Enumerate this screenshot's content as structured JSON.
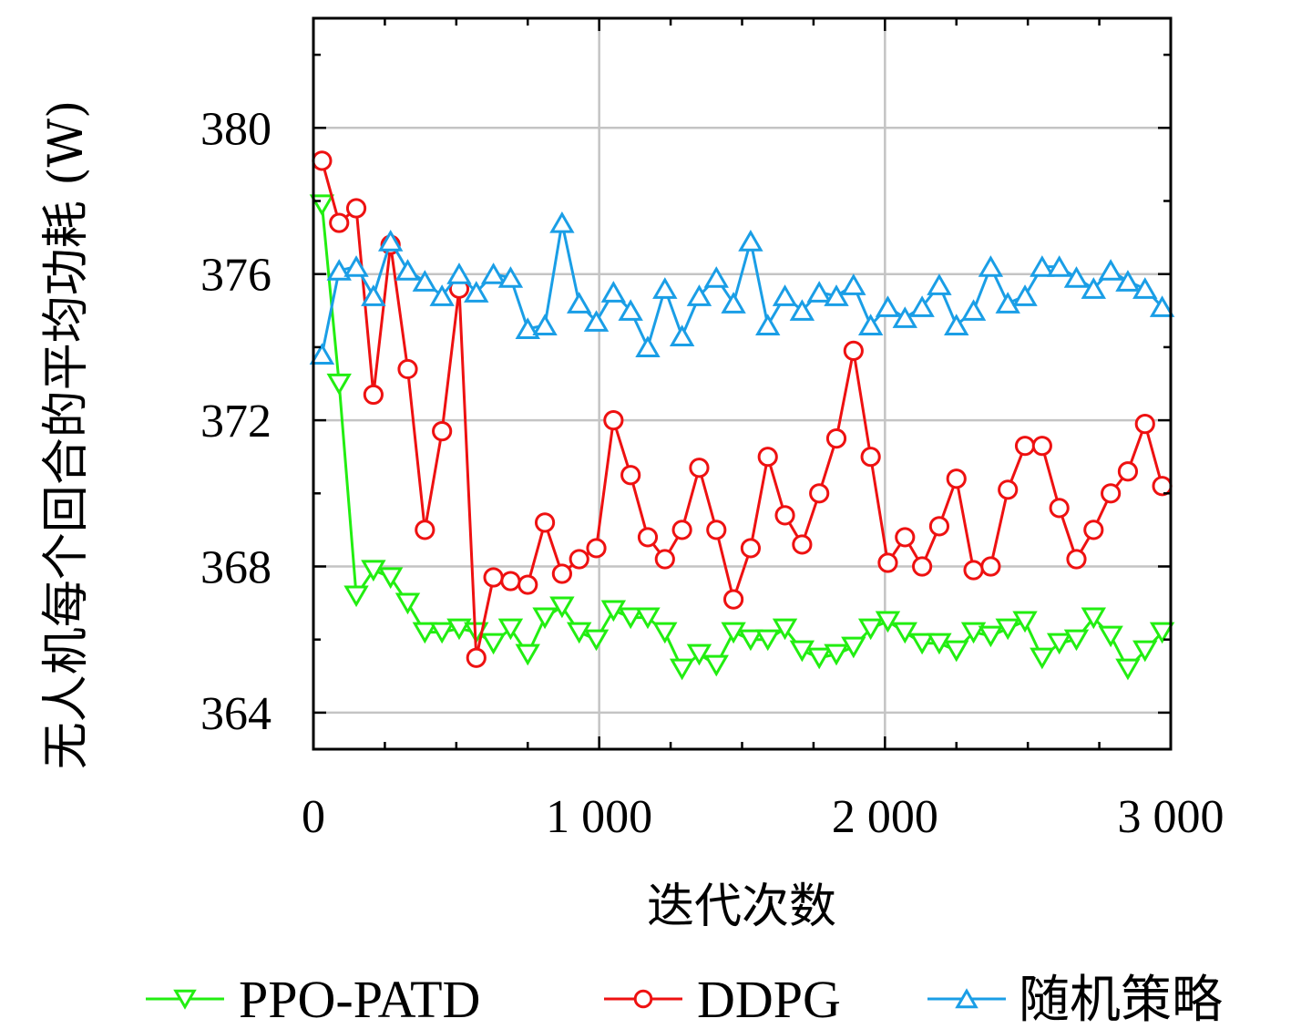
{
  "chart_data": {
    "type": "line",
    "xlabel": "迭代次数",
    "ylabel": "无人机每个回合的平均功耗 (W)",
    "xlim": [
      0,
      3000
    ],
    "ylim": [
      363,
      383
    ],
    "xticks": [
      0,
      1000,
      2000,
      3000
    ],
    "xtick_labels": [
      "0",
      "1 000",
      "2 000",
      "3 000"
    ],
    "yticks": [
      364,
      368,
      372,
      376,
      380
    ],
    "ytick_labels": [
      "364",
      "368",
      "372",
      "376",
      "380"
    ],
    "grid": true,
    "legend_position": "bottom",
    "x": [
      30,
      90,
      150,
      210,
      270,
      330,
      390,
      450,
      510,
      570,
      630,
      690,
      750,
      810,
      870,
      930,
      990,
      1050,
      1110,
      1170,
      1230,
      1290,
      1350,
      1410,
      1470,
      1530,
      1590,
      1650,
      1710,
      1770,
      1830,
      1890,
      1950,
      2010,
      2070,
      2130,
      2190,
      2250,
      2310,
      2370,
      2430,
      2490,
      2550,
      2610,
      2670,
      2730,
      2790,
      2850,
      2910,
      2970
    ],
    "series": [
      {
        "name": "PPO-PATD",
        "color": "#22ee11",
        "marker": "triangle-down",
        "values": [
          377.9,
          373.0,
          367.2,
          367.9,
          367.7,
          367.0,
          366.2,
          366.2,
          366.3,
          366.2,
          365.9,
          366.3,
          365.6,
          366.6,
          366.9,
          366.2,
          366.0,
          366.8,
          366.6,
          366.6,
          366.2,
          365.2,
          365.6,
          365.3,
          366.2,
          366.0,
          366.0,
          366.3,
          365.7,
          365.5,
          365.6,
          365.8,
          366.3,
          366.5,
          366.2,
          365.9,
          365.9,
          365.7,
          366.2,
          366.1,
          366.3,
          366.5,
          365.5,
          365.9,
          366.0,
          366.6,
          366.1,
          365.2,
          365.7,
          366.2
        ]
      },
      {
        "name": "DDPG",
        "color": "#ee1111",
        "marker": "circle",
        "values": [
          379.1,
          377.4,
          377.8,
          372.7,
          376.8,
          373.4,
          369.0,
          371.7,
          375.6,
          365.5,
          367.7,
          367.6,
          367.5,
          369.2,
          367.8,
          368.2,
          368.5,
          372.0,
          370.5,
          368.8,
          368.2,
          369.0,
          370.7,
          369.0,
          367.1,
          368.5,
          371.0,
          369.4,
          368.6,
          370.0,
          371.5,
          373.9,
          371.0,
          368.1,
          368.8,
          368.0,
          369.1,
          370.4,
          367.9,
          368.0,
          370.1,
          371.3,
          371.3,
          369.6,
          368.2,
          369.0,
          370.0,
          370.6,
          371.9,
          370.2
        ]
      },
      {
        "name": "随机策略",
        "color": "#1a9ee6",
        "marker": "triangle-up",
        "values": [
          373.8,
          376.1,
          376.2,
          375.4,
          376.9,
          376.1,
          375.8,
          375.4,
          376.0,
          375.5,
          376.0,
          375.9,
          374.5,
          374.6,
          377.4,
          375.2,
          374.7,
          375.5,
          375.0,
          374.0,
          375.6,
          374.3,
          375.4,
          375.9,
          375.2,
          376.9,
          374.6,
          375.4,
          375.0,
          375.5,
          375.4,
          375.7,
          374.6,
          375.1,
          374.8,
          375.1,
          375.7,
          374.6,
          375.0,
          376.2,
          375.2,
          375.4,
          376.2,
          376.2,
          375.9,
          375.6,
          376.1,
          375.8,
          375.6,
          375.1
        ]
      }
    ]
  }
}
